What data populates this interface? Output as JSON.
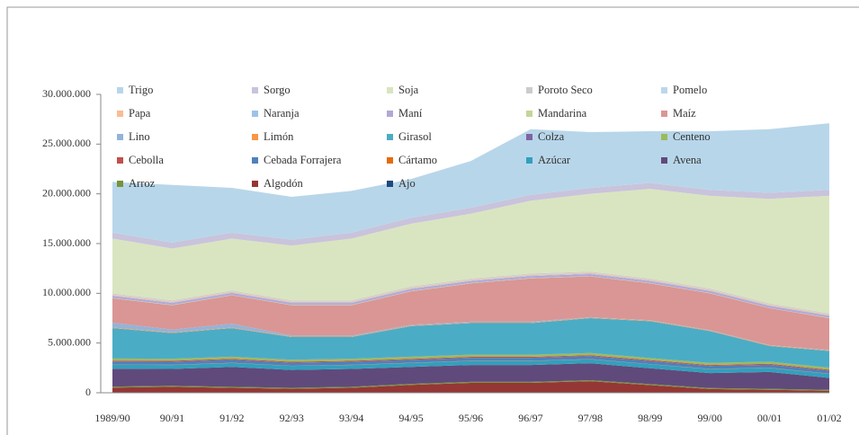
{
  "chart_data": {
    "type": "stacked_area",
    "categories": [
      "1989/90",
      "90/91",
      "91/92",
      "92/93",
      "93/94",
      "94/95",
      "95/96",
      "96/97",
      "97/98",
      "98/99",
      "99/00",
      "00/01",
      "01/02"
    ],
    "ylim": [
      0,
      30000000
    ],
    "yticks": [
      0,
      {
        "value": 5000000,
        "label": "5.000.000"
      },
      {
        "value": 10000000,
        "label": "10.000.000"
      },
      {
        "value": 15000000,
        "label": "15.000.000"
      },
      {
        "value": 20000000,
        "label": "20.000.000"
      },
      {
        "value": 25000000,
        "label": "25.000.000"
      },
      {
        "value": 30000000,
        "label": "30.000.000"
      }
    ],
    "legend": "top",
    "series": [
      {
        "name": "Trigo",
        "color": "#b8d6ea",
        "values": [
          5100000,
          5800000,
          4500000,
          4300000,
          4200000,
          3900000,
          4700000,
          6600000,
          5600000,
          5200000,
          5900000,
          6400000,
          6700000
        ]
      },
      {
        "name": "Sorgo",
        "color": "#c9c3dc",
        "values": [
          600000,
          600000,
          600000,
          600000,
          600000,
          600000,
          600000,
          600000,
          600000,
          600000,
          600000,
          600000,
          600000
        ]
      },
      {
        "name": "Soja",
        "color": "#d9e5c0",
        "values": [
          5520000,
          5220000,
          5220000,
          5520000,
          6220000,
          6320000,
          6520000,
          7320000,
          7820000,
          9020000,
          9320000,
          10520000,
          11820000
        ]
      },
      {
        "name": "Poroto Seco",
        "color": "#cccccc",
        "values": [
          100000,
          100000,
          100000,
          100000,
          100000,
          100000,
          100000,
          100000,
          100000,
          100000,
          100000,
          100000,
          100000
        ]
      },
      {
        "name": "Pomelo",
        "color": "#bcd7ea",
        "values": [
          20000,
          20000,
          20000,
          20000,
          20000,
          20000,
          20000,
          20000,
          20000,
          20000,
          20000,
          20000,
          20000
        ]
      },
      {
        "name": "Papa",
        "color": "#f9bd92",
        "values": [
          80000,
          80000,
          80000,
          80000,
          80000,
          80000,
          80000,
          80000,
          80000,
          80000,
          80000,
          80000,
          80000
        ]
      },
      {
        "name": "Naranja",
        "color": "#9dc3e6",
        "values": [
          50000,
          50000,
          50000,
          50000,
          50000,
          50000,
          50000,
          50000,
          50000,
          50000,
          50000,
          50000,
          50000
        ]
      },
      {
        "name": "Maní",
        "color": "#b4a7d6",
        "values": [
          200000,
          200000,
          200000,
          200000,
          200000,
          200000,
          200000,
          200000,
          200000,
          200000,
          200000,
          200000,
          200000
        ]
      },
      {
        "name": "Mandarina",
        "color": "#c3d69b",
        "values": [
          30000,
          30000,
          30000,
          30000,
          30000,
          30000,
          30000,
          30000,
          30000,
          30000,
          30000,
          30000,
          30000
        ]
      },
      {
        "name": "Maíz",
        "color": "#d99694",
        "values": [
          2450000,
          2450000,
          2850000,
          3050000,
          3050000,
          3350000,
          3850000,
          4350000,
          4100000,
          3700000,
          3700000,
          3700000,
          3200000
        ]
      },
      {
        "name": "Lino",
        "color": "#95b3d7",
        "values": [
          500000,
          300000,
          400000,
          100000,
          100000,
          100000,
          100000,
          100000,
          50000,
          50000,
          50000,
          50000,
          50000
        ]
      },
      {
        "name": "Limón",
        "color": "#f79646",
        "values": [
          50000,
          50000,
          50000,
          50000,
          50000,
          50000,
          50000,
          50000,
          50000,
          50000,
          50000,
          50000,
          50000
        ]
      },
      {
        "name": "Girasol",
        "color": "#4bacc6",
        "values": [
          3055000,
          2575000,
          2875000,
          2275000,
          2175000,
          3075000,
          3175000,
          3175000,
          3505000,
          3705000,
          3195000,
          1575000,
          1675000
        ]
      },
      {
        "name": "Colza",
        "color": "#8064a2",
        "values": [
          10000,
          10000,
          10000,
          10000,
          10000,
          10000,
          10000,
          10000,
          10000,
          10000,
          10000,
          10000,
          10000
        ]
      },
      {
        "name": "Centeno",
        "color": "#9bbb59",
        "values": [
          200000,
          200000,
          200000,
          200000,
          200000,
          200000,
          200000,
          200000,
          200000,
          200000,
          200000,
          200000,
          200000
        ]
      },
      {
        "name": "Cebolla",
        "color": "#c0504d",
        "values": [
          100000,
          100000,
          100000,
          100000,
          100000,
          100000,
          100000,
          100000,
          100000,
          100000,
          100000,
          100000,
          100000
        ]
      },
      {
        "name": "Cebada Forrajera",
        "color": "#4f81bd",
        "values": [
          300000,
          300000,
          300000,
          300000,
          300000,
          300000,
          300000,
          300000,
          300000,
          300000,
          300000,
          300000,
          300000
        ]
      },
      {
        "name": "Cártamo",
        "color": "#e46c0a",
        "values": [
          20000,
          20000,
          20000,
          20000,
          20000,
          20000,
          20000,
          20000,
          20000,
          20000,
          20000,
          20000,
          20000
        ]
      },
      {
        "name": "Azúcar",
        "color": "#31a0bd",
        "values": [
          400000,
          400000,
          400000,
          400000,
          400000,
          400000,
          400000,
          400000,
          400000,
          400000,
          400000,
          400000,
          400000
        ]
      },
      {
        "name": "Avena",
        "color": "#604a7b",
        "values": [
          1800000,
          1700000,
          2000000,
          1800000,
          1800000,
          1700000,
          1700000,
          1700000,
          1700000,
          1600000,
          1500000,
          1700000,
          1200000
        ]
      },
      {
        "name": "Arroz",
        "color": "#77933c",
        "values": [
          100000,
          100000,
          100000,
          100000,
          100000,
          100000,
          100000,
          100000,
          100000,
          100000,
          100000,
          100000,
          100000
        ]
      },
      {
        "name": "Algodón",
        "color": "#953735",
        "values": [
          500000,
          580000,
          480000,
          380000,
          480000,
          780000,
          980000,
          980000,
          1150000,
          750000,
          360000,
          280000,
          180000
        ]
      },
      {
        "name": "Ajo",
        "color": "#1f497d",
        "values": [
          15000,
          15000,
          15000,
          15000,
          15000,
          15000,
          15000,
          15000,
          15000,
          15000,
          15000,
          15000,
          15000
        ]
      }
    ]
  }
}
